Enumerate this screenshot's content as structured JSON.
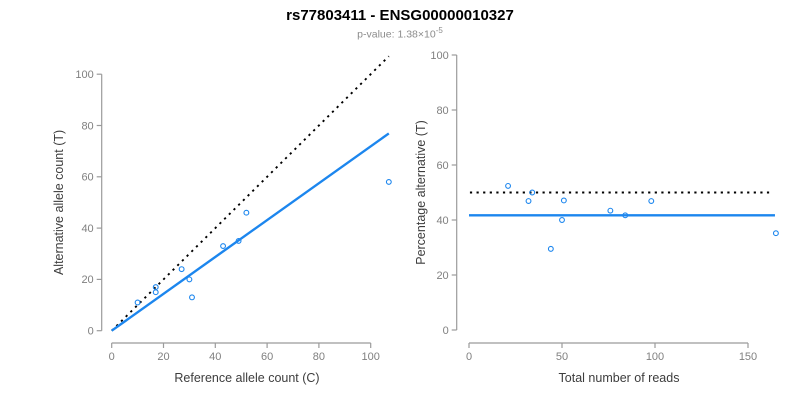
{
  "header": {
    "title": "rs77803411 - ENSG00000010327",
    "subtitle_prefix": "p-value: 1.38×10",
    "subtitle_exponent": "-5"
  },
  "colors": {
    "accent_blue": "#1C86EE",
    "identity_black": "#000000",
    "axis_line": "#9b9b9b",
    "tick_label": "#808080",
    "axis_title": "#3d3d3d",
    "subtitle_gray": "#8c8c8c"
  },
  "chart_data": [
    {
      "type": "scatter",
      "title": "rs77803411 - ENSG00000010327",
      "subtitle": "p-value: 1.38e-5",
      "xlabel": "Reference allele count (C)",
      "ylabel": "Alternative allele count (T)",
      "xlim": [
        0,
        108
      ],
      "ylim": [
        0,
        110
      ],
      "xticks": [
        0,
        20,
        40,
        60,
        80,
        100
      ],
      "yticks": [
        0,
        20,
        40,
        60,
        80,
        100
      ],
      "grid": false,
      "legend": "none",
      "marker": "open-circle",
      "points": [
        {
          "x": 10,
          "y": 11
        },
        {
          "x": 17,
          "y": 15
        },
        {
          "x": 17,
          "y": 17
        },
        {
          "x": 27,
          "y": 24
        },
        {
          "x": 30,
          "y": 20
        },
        {
          "x": 31,
          "y": 13
        },
        {
          "x": 43,
          "y": 33
        },
        {
          "x": 49,
          "y": 35
        },
        {
          "x": 52,
          "y": 46
        },
        {
          "x": 107,
          "y": 58
        }
      ],
      "lines": [
        {
          "name": "identity-line",
          "style": "dotted",
          "color_key": "identity_black",
          "x1": 0,
          "y1": 0,
          "x2": 107,
          "y2": 107
        },
        {
          "name": "fit-line",
          "style": "solid",
          "color_key": "accent_blue",
          "x1": 0,
          "y1": 0,
          "x2": 107,
          "y2": 76.9
        }
      ]
    },
    {
      "type": "scatter",
      "xlabel": "Total number of reads",
      "ylabel": "Percentage alternative (T)",
      "xlim": [
        0,
        168
      ],
      "ylim": [
        0,
        100
      ],
      "xticks": [
        0,
        50,
        100,
        150
      ],
      "yticks": [
        0,
        20,
        40,
        60,
        80,
        100
      ],
      "grid": false,
      "legend": "none",
      "marker": "open-circle",
      "points": [
        {
          "x": 21,
          "y": 52.4
        },
        {
          "x": 32,
          "y": 46.9
        },
        {
          "x": 34,
          "y": 50
        },
        {
          "x": 44,
          "y": 29.5
        },
        {
          "x": 50,
          "y": 40
        },
        {
          "x": 51,
          "y": 47.1
        },
        {
          "x": 76,
          "y": 43.4
        },
        {
          "x": 84,
          "y": 41.7
        },
        {
          "x": 98,
          "y": 46.9
        },
        {
          "x": 165,
          "y": 35.2
        }
      ],
      "lines": [
        {
          "name": "expected-50pct-line",
          "style": "dotted",
          "color_key": "identity_black",
          "x1": 0.5,
          "y1": 50,
          "x2": 162,
          "y2": 50
        },
        {
          "name": "fit-percentage-line",
          "style": "solid",
          "color_key": "accent_blue",
          "x1": 0,
          "y1": 41.7,
          "x2": 164.5,
          "y2": 41.7
        }
      ]
    }
  ]
}
